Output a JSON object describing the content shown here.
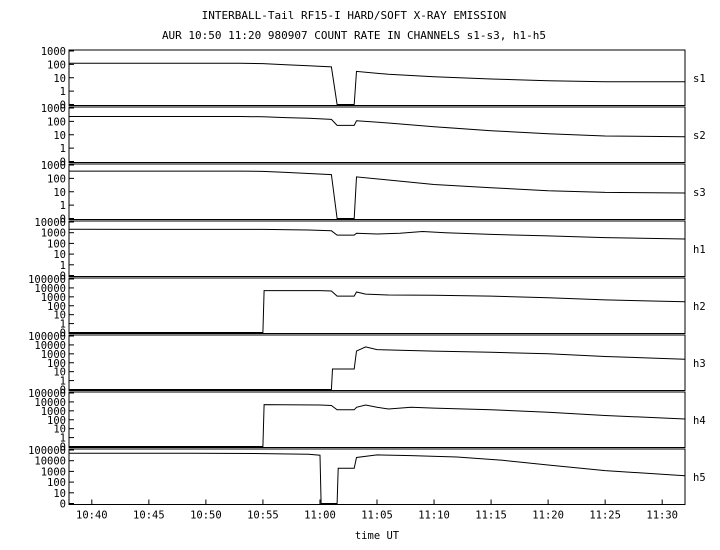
{
  "chart_data": {
    "type": "line",
    "title": "INTERBALL-Tail RF15-I HARD/SOFT X-RAY EMISSION",
    "subtitle": "AUR 10:50 11:20 980907  COUNT RATE IN CHANNELS s1-s3, h1-h5",
    "xlabel": "time UT",
    "x_ticks": [
      "10:40",
      "10:45",
      "10:50",
      "10:55",
      "11:00",
      "11:05",
      "11:10",
      "11:15",
      "11:20",
      "11:25",
      "11:30"
    ],
    "xlim_minutes_of_day": [
      638,
      692
    ],
    "y_scale": "log",
    "grid": false,
    "panels": [
      {
        "channel": "s1",
        "y_ticks": [
          "1000",
          "100",
          "10",
          "1",
          "0"
        ],
        "points": [
          [
            638,
            120
          ],
          [
            653,
            120
          ],
          [
            655,
            115
          ],
          [
            657,
            95
          ],
          [
            659,
            80
          ],
          [
            661,
            65
          ],
          [
            661.5,
            0
          ],
          [
            663,
            0
          ],
          [
            663.2,
            30
          ],
          [
            666,
            18
          ],
          [
            670,
            12
          ],
          [
            675,
            8
          ],
          [
            680,
            6
          ],
          [
            685,
            5
          ],
          [
            692,
            5
          ]
        ]
      },
      {
        "channel": "s2",
        "y_ticks": [
          "1000",
          "100",
          "10",
          "1",
          "0"
        ],
        "points": [
          [
            638,
            230
          ],
          [
            653,
            230
          ],
          [
            655,
            220
          ],
          [
            657,
            190
          ],
          [
            659,
            170
          ],
          [
            661,
            140
          ],
          [
            661.5,
            50
          ],
          [
            663,
            50
          ],
          [
            663.2,
            110
          ],
          [
            666,
            75
          ],
          [
            670,
            40
          ],
          [
            675,
            20
          ],
          [
            680,
            12
          ],
          [
            685,
            8
          ],
          [
            692,
            7
          ]
        ]
      },
      {
        "channel": "s3",
        "y_ticks": [
          "1000",
          "100",
          "10",
          "1",
          "0"
        ],
        "points": [
          [
            638,
            350
          ],
          [
            653,
            350
          ],
          [
            655,
            330
          ],
          [
            657,
            280
          ],
          [
            659,
            230
          ],
          [
            661,
            190
          ],
          [
            661.5,
            0
          ],
          [
            663,
            0
          ],
          [
            663.2,
            130
          ],
          [
            666,
            75
          ],
          [
            670,
            35
          ],
          [
            675,
            20
          ],
          [
            680,
            12
          ],
          [
            685,
            9
          ],
          [
            692,
            8
          ]
        ]
      },
      {
        "channel": "h1",
        "y_ticks": [
          "10000",
          "1000",
          "100",
          "10",
          "1",
          "0"
        ],
        "points": [
          [
            638,
            2100
          ],
          [
            655,
            2050
          ],
          [
            659,
            1800
          ],
          [
            661,
            1500
          ],
          [
            661.5,
            600
          ],
          [
            663,
            600
          ],
          [
            663.2,
            900
          ],
          [
            665,
            750
          ],
          [
            667,
            900
          ],
          [
            669,
            1300
          ],
          [
            671,
            1000
          ],
          [
            675,
            700
          ],
          [
            680,
            500
          ],
          [
            685,
            350
          ],
          [
            692,
            260
          ]
        ]
      },
      {
        "channel": "h2",
        "y_ticks": [
          "100000",
          "10000",
          "1000",
          "100",
          "10",
          "1",
          "0"
        ],
        "points": [
          [
            638,
            0
          ],
          [
            655,
            0
          ],
          [
            655.1,
            5000
          ],
          [
            660,
            5000
          ],
          [
            661,
            4500
          ],
          [
            661.5,
            1200
          ],
          [
            663,
            1200
          ],
          [
            663.2,
            3500
          ],
          [
            664,
            2000
          ],
          [
            666,
            1600
          ],
          [
            670,
            1500
          ],
          [
            675,
            1200
          ],
          [
            680,
            800
          ],
          [
            685,
            450
          ],
          [
            692,
            280
          ]
        ]
      },
      {
        "channel": "h3",
        "y_ticks": [
          "100000",
          "10000",
          "1000",
          "100",
          "10",
          "1",
          "0"
        ],
        "points": [
          [
            638,
            0
          ],
          [
            661,
            0
          ],
          [
            661.1,
            20
          ],
          [
            663,
            20
          ],
          [
            663.2,
            2000
          ],
          [
            664,
            6000
          ],
          [
            665,
            3000
          ],
          [
            667,
            2500
          ],
          [
            670,
            2000
          ],
          [
            675,
            1500
          ],
          [
            680,
            1000
          ],
          [
            685,
            500
          ],
          [
            692,
            250
          ]
        ]
      },
      {
        "channel": "h4",
        "y_ticks": [
          "100000",
          "10000",
          "1000",
          "100",
          "10",
          "1",
          "0"
        ],
        "points": [
          [
            638,
            0
          ],
          [
            655,
            0
          ],
          [
            655.1,
            5000
          ],
          [
            660,
            4500
          ],
          [
            661,
            4000
          ],
          [
            661.5,
            1300
          ],
          [
            663,
            1300
          ],
          [
            663.2,
            2500
          ],
          [
            664,
            4500
          ],
          [
            665,
            2500
          ],
          [
            666,
            1600
          ],
          [
            668,
            2500
          ],
          [
            670,
            2000
          ],
          [
            675,
            1300
          ],
          [
            680,
            700
          ],
          [
            685,
            300
          ],
          [
            692,
            120
          ]
        ]
      },
      {
        "channel": "h5",
        "y_ticks": [
          "100000",
          "10000",
          "1000",
          "100",
          "10",
          "0"
        ],
        "points": [
          [
            638,
            5000
          ],
          [
            649,
            5000
          ],
          [
            655,
            4600
          ],
          [
            659,
            4000
          ],
          [
            660,
            3300
          ],
          [
            660.1,
            0
          ],
          [
            661,
            0
          ],
          [
            661.5,
            0
          ],
          [
            661.6,
            200
          ],
          [
            663,
            200
          ],
          [
            663.2,
            2000
          ],
          [
            665,
            3500
          ],
          [
            668,
            3000
          ],
          [
            672,
            2200
          ],
          [
            676,
            1100
          ],
          [
            680,
            400
          ],
          [
            685,
            120
          ],
          [
            692,
            40
          ]
        ]
      }
    ]
  }
}
